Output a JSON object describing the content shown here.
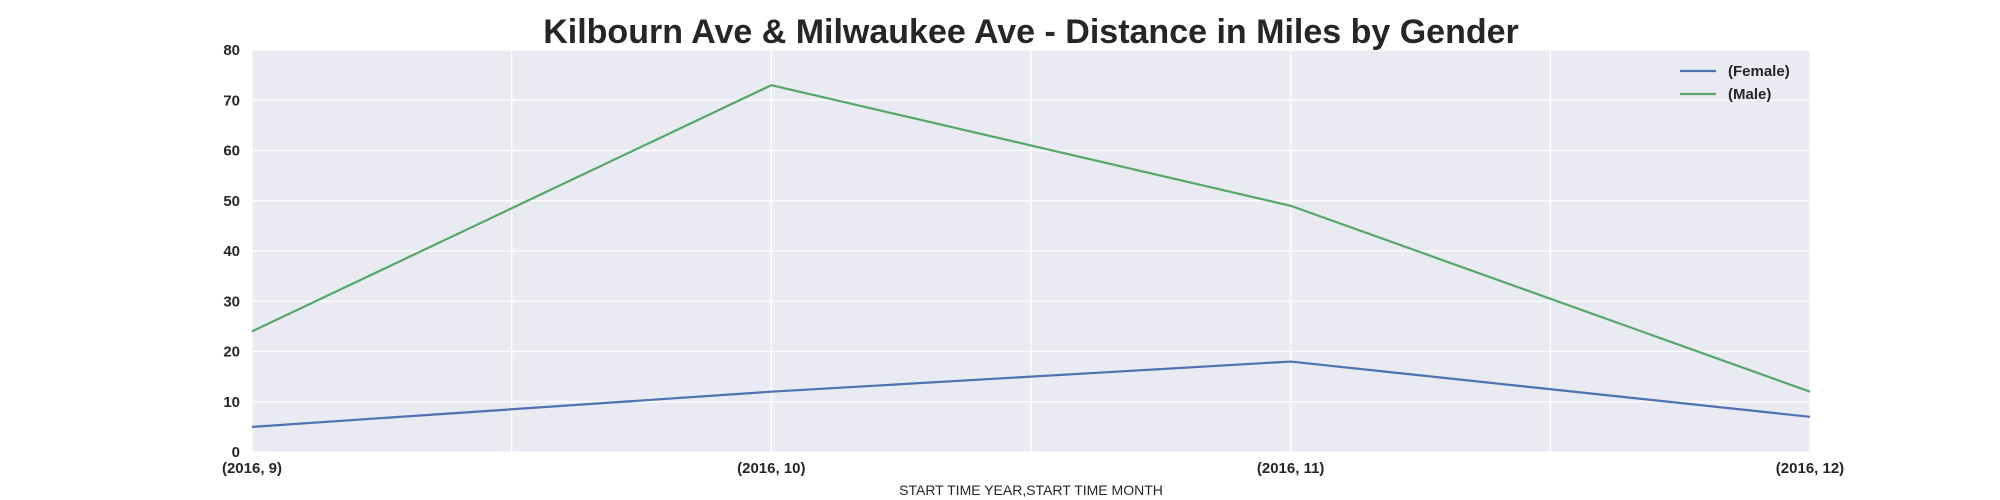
{
  "chart_data": {
    "type": "line",
    "title": "Kilbourn Ave & Milwaukee Ave - Distance in Miles by Gender",
    "xlabel": "START TIME YEAR,START TIME MONTH",
    "ylabel": "",
    "categories": [
      "(2016, 9)",
      "(2016, 10)",
      "(2016, 11)",
      "(2016, 12)"
    ],
    "y_ticks": [
      0,
      10,
      20,
      30,
      40,
      50,
      60,
      70,
      80
    ],
    "ylim": [
      0,
      80
    ],
    "grid": true,
    "legend_position": "top-right",
    "series": [
      {
        "name": "(Female)",
        "color": "#4c72b0",
        "values": [
          5,
          12,
          18,
          7
        ]
      },
      {
        "name": "(Male)",
        "color": "#55a868",
        "values": [
          24,
          73,
          49,
          12
        ]
      }
    ],
    "colors": {
      "plot_background": "#eaeaf2",
      "grid": "#ffffff",
      "text": "#262626"
    }
  }
}
